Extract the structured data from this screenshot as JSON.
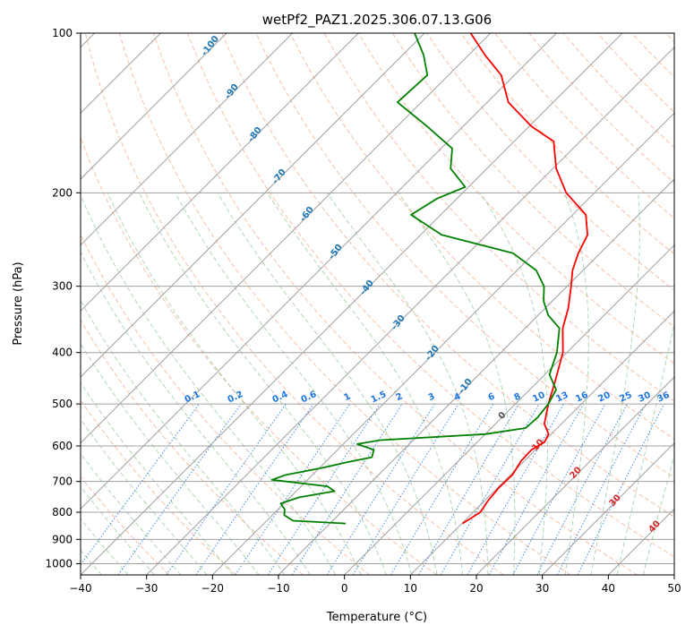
{
  "chart_data": {
    "type": "skew-t",
    "title": "wetPf2_PAZ1.2025.306.07.13.G06",
    "xlabel": "Temperature (°C)",
    "ylabel": "Pressure (hPa)",
    "xlim": [
      -40,
      50
    ],
    "ylim": [
      1050,
      100
    ],
    "x_ticks": [
      "−40",
      "−30",
      "−20",
      "−10",
      "0",
      "10",
      "20",
      "30",
      "40",
      "50"
    ],
    "y_ticks": [
      "100",
      "200",
      "300",
      "400",
      "500",
      "600",
      "700",
      "800",
      "900",
      "1000"
    ],
    "colors": {
      "temperature": "#ff0000",
      "dewpoint": "#008000",
      "isotherm": "#a0a0a0",
      "isobar": "#a0a0a0",
      "dry_adiabat": "#f4a582",
      "moist_adiabat": "#8fc88f",
      "mixing_ratio": "#1f77e4",
      "dry_adiabat_label": "#1f77b4",
      "moist_label": "#d62728"
    },
    "dry_adiabat_labels": [
      "-100",
      "-90",
      "-80",
      "-70",
      "-60",
      "-50",
      "-40",
      "-30",
      "-20",
      "-10"
    ],
    "moist_adiabat_labels": [
      "0",
      "10",
      "20",
      "30",
      "40"
    ],
    "mixing_ratio_labels": [
      "0.1",
      "0.2",
      "0.4",
      "0.6",
      "1",
      "1.5",
      "2",
      "3",
      "4",
      "6",
      "8",
      "10",
      "13",
      "16",
      "20",
      "25",
      "30",
      "36"
    ],
    "series": [
      {
        "name": "Temperature",
        "points": [
          {
            "p": 840,
            "t": 10.1
          },
          {
            "p": 800,
            "t": 11.1
          },
          {
            "p": 760,
            "t": 10.5
          },
          {
            "p": 720,
            "t": 10.2
          },
          {
            "p": 680,
            "t": 10.3
          },
          {
            "p": 640,
            "t": 9.5
          },
          {
            "p": 610,
            "t": 9.4
          },
          {
            "p": 590,
            "t": 10.2
          },
          {
            "p": 570,
            "t": 9.6
          },
          {
            "p": 545,
            "t": 7.4
          },
          {
            "p": 500,
            "t": 5.0
          },
          {
            "p": 450,
            "t": 2.4
          },
          {
            "p": 400,
            "t": -0.6
          },
          {
            "p": 360,
            "t": -4.3
          },
          {
            "p": 330,
            "t": -6.5
          },
          {
            "p": 300,
            "t": -9.4
          },
          {
            "p": 280,
            "t": -11.6
          },
          {
            "p": 260,
            "t": -13.3
          },
          {
            "p": 240,
            "t": -14.7
          },
          {
            "p": 220,
            "t": -18.0
          },
          {
            "p": 200,
            "t": -24.3
          },
          {
            "p": 180,
            "t": -29.5
          },
          {
            "p": 160,
            "t": -34.0
          },
          {
            "p": 150,
            "t": -39.6
          },
          {
            "p": 135,
            "t": -46.8
          },
          {
            "p": 120,
            "t": -52.0
          },
          {
            "p": 110,
            "t": -57.5
          },
          {
            "p": 100,
            "t": -63.0
          }
        ]
      },
      {
        "name": "Dewpoint",
        "points": [
          {
            "p": 840,
            "t": -7.6
          },
          {
            "p": 830,
            "t": -16.0
          },
          {
            "p": 810,
            "t": -18.2
          },
          {
            "p": 790,
            "t": -19.0
          },
          {
            "p": 770,
            "t": -20.5
          },
          {
            "p": 750,
            "t": -18.6
          },
          {
            "p": 730,
            "t": -14.2
          },
          {
            "p": 715,
            "t": -16.0
          },
          {
            "p": 695,
            "t": -25.4
          },
          {
            "p": 680,
            "t": -24.0
          },
          {
            "p": 660,
            "t": -19.6
          },
          {
            "p": 645,
            "t": -16.9
          },
          {
            "p": 630,
            "t": -13.7
          },
          {
            "p": 610,
            "t": -14.5
          },
          {
            "p": 595,
            "t": -17.9
          },
          {
            "p": 585,
            "t": -15.0
          },
          {
            "p": 570,
            "t": 0.0
          },
          {
            "p": 555,
            "t": 5.2
          },
          {
            "p": 530,
            "t": 5.4
          },
          {
            "p": 500,
            "t": 5.0
          },
          {
            "p": 470,
            "t": 4.0
          },
          {
            "p": 440,
            "t": 0.7
          },
          {
            "p": 400,
            "t": -1.5
          },
          {
            "p": 360,
            "t": -4.8
          },
          {
            "p": 340,
            "t": -8.5
          },
          {
            "p": 320,
            "t": -11.3
          },
          {
            "p": 300,
            "t": -13.5
          },
          {
            "p": 280,
            "t": -17.1
          },
          {
            "p": 260,
            "t": -23.2
          },
          {
            "p": 240,
            "t": -36.8
          },
          {
            "p": 220,
            "t": -44.5
          },
          {
            "p": 205,
            "t": -43.0
          },
          {
            "p": 195,
            "t": -40.5
          },
          {
            "p": 180,
            "t": -45.5
          },
          {
            "p": 165,
            "t": -48.3
          },
          {
            "p": 150,
            "t": -55.4
          },
          {
            "p": 135,
            "t": -63.6
          },
          {
            "p": 120,
            "t": -63.2
          },
          {
            "p": 110,
            "t": -66.8
          },
          {
            "p": 100,
            "t": -71.5
          }
        ]
      }
    ]
  }
}
